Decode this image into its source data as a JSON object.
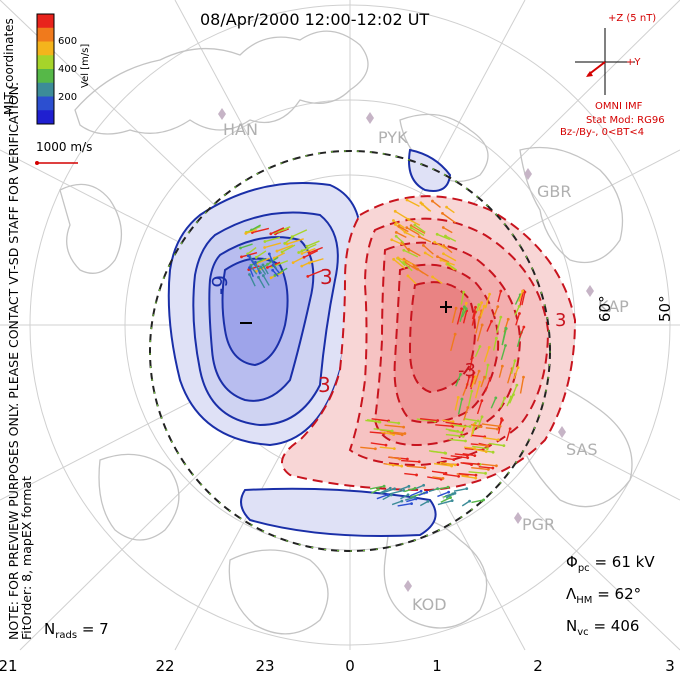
{
  "title": "08/Apr/2000 12:00-12:02 UT",
  "notes": {
    "line1": "NOTE: FOR PREVIEW PURPOSES ONLY. PLEASE CONTACT VT-SD STAFF FOR VERIFICATION.",
    "line2": "FitOrder: 8, mapEX format"
  },
  "colorbar": {
    "label": "Vel [m/s]",
    "ticks": [
      "600",
      "400",
      "200"
    ],
    "colors": [
      "#e8231c",
      "#f07a1c",
      "#f4b41c",
      "#a6d42a",
      "#56b848",
      "#3c8c98",
      "#2c4fd0",
      "#1f1fd0"
    ]
  },
  "coordinates_label": "MLT coordinates",
  "velocity_scale": "1000 m/s",
  "imf": {
    "bz_label": "+Z (5 nT)",
    "by_label": "+Y",
    "source": "OMNI IMF",
    "model": "Stat Mod: RG96",
    "condition": "Bz-/By-, 0<BT<4"
  },
  "stations": [
    "HAN",
    "PYK",
    "GBR",
    "KAP",
    "SAS",
    "PGR",
    "KOD"
  ],
  "latitude_labels": [
    "60°",
    "50°"
  ],
  "mlt_ticks": [
    "21",
    "22",
    "23",
    "0",
    "1",
    "2",
    "3"
  ],
  "stats": {
    "phi_sym": "Φ",
    "phi_sub": "pc",
    "phi_val": "= 61 kV",
    "lam_sym": "Λ",
    "lam_sub": "HM",
    "lam_val": "= 62°",
    "nvc_sym": "N",
    "nvc_sub": "vc",
    "nvc_val": "= 406",
    "nrads_sym": "N",
    "nrads_sub": "rads",
    "nrads_val": "= 7"
  },
  "contour_labels": [
    "-9",
    "3",
    "3",
    "3",
    "-3"
  ],
  "extrema": {
    "min": "–",
    "max": "+"
  },
  "colors": {
    "negative_fill": "#c7cbf0",
    "negative_line": "#1a2fa8",
    "positive_fill": "#f6b6b6",
    "positive_line": "#c8141e",
    "grid": "#cfcfcf",
    "coast": "#c8c8c8",
    "boundary": "#222222"
  }
}
